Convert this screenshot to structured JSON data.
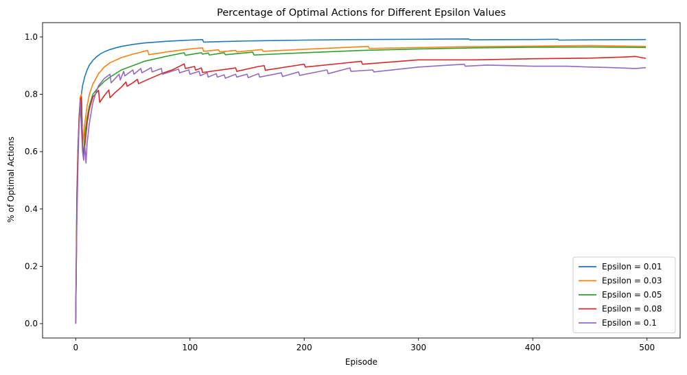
{
  "chart_data": {
    "type": "line",
    "title": "Percentage of Optimal Actions for Different Epsilon Values",
    "xlabel": "Episode",
    "ylabel": "% of Optimal Actions",
    "xlim": [
      -29,
      529
    ],
    "ylim": [
      -0.05,
      1.05
    ],
    "xticks": [
      0,
      100,
      200,
      300,
      400,
      500
    ],
    "yticks": [
      0.0,
      0.2,
      0.4,
      0.6,
      0.8,
      1.0
    ],
    "ytick_labels": [
      "0.0",
      "0.2",
      "0.4",
      "0.6",
      "0.8",
      "1.0"
    ],
    "grid": false,
    "legend_position": "lower-right",
    "series": [
      {
        "name": "Epsilon = 0.01",
        "color": "#1f77b4",
        "x": [
          0,
          1,
          2,
          3,
          4,
          5,
          6,
          8,
          10,
          12,
          15,
          18,
          22,
          26,
          30,
          35,
          40,
          50,
          60,
          70,
          80,
          90,
          100,
          111,
          112,
          130,
          150,
          200,
          250,
          300,
          344,
          345,
          400,
          422,
          423,
          450,
          499
        ],
        "y": [
          0.0,
          0.45,
          0.62,
          0.7,
          0.76,
          0.8,
          0.83,
          0.862,
          0.885,
          0.902,
          0.918,
          0.93,
          0.942,
          0.95,
          0.956,
          0.962,
          0.967,
          0.974,
          0.979,
          0.982,
          0.985,
          0.987,
          0.989,
          0.991,
          0.982,
          0.984,
          0.986,
          0.989,
          0.991,
          0.992,
          0.993,
          0.99,
          0.991,
          0.992,
          0.989,
          0.99,
          0.991
        ]
      },
      {
        "name": "Epsilon = 0.03",
        "color": "#ff7f0e",
        "x": [
          0,
          1,
          2,
          3,
          4,
          5,
          6,
          8,
          10,
          12,
          15,
          20,
          25,
          30,
          40,
          50,
          63,
          64,
          80,
          100,
          111,
          112,
          125,
          126,
          140,
          141,
          163,
          164,
          200,
          256,
          257,
          300,
          340,
          400,
          450,
          499
        ],
        "y": [
          0.0,
          0.4,
          0.6,
          0.72,
          0.79,
          0.8,
          0.62,
          0.7,
          0.76,
          0.8,
          0.835,
          0.872,
          0.895,
          0.91,
          0.928,
          0.94,
          0.953,
          0.938,
          0.948,
          0.958,
          0.962,
          0.95,
          0.955,
          0.948,
          0.953,
          0.948,
          0.956,
          0.95,
          0.957,
          0.967,
          0.96,
          0.963,
          0.966,
          0.968,
          0.97,
          0.967
        ]
      },
      {
        "name": "Epsilon = 0.05",
        "color": "#2ca02c",
        "x": [
          0,
          1,
          2,
          3,
          4,
          5,
          6,
          7,
          8,
          10,
          12,
          15,
          20,
          25,
          30,
          40,
          50,
          60,
          80,
          95,
          96,
          110,
          111,
          116,
          117,
          130,
          131,
          155,
          156,
          200,
          250,
          300,
          350,
          400,
          450,
          499
        ],
        "y": [
          0.0,
          0.4,
          0.6,
          0.72,
          0.78,
          0.79,
          0.63,
          0.58,
          0.66,
          0.72,
          0.76,
          0.8,
          0.825,
          0.845,
          0.86,
          0.885,
          0.9,
          0.915,
          0.933,
          0.945,
          0.936,
          0.945,
          0.94,
          0.944,
          0.937,
          0.945,
          0.938,
          0.947,
          0.937,
          0.945,
          0.953,
          0.958,
          0.962,
          0.964,
          0.965,
          0.963
        ]
      },
      {
        "name": "Epsilon = 0.08",
        "color": "#d62728",
        "x": [
          0,
          1,
          2,
          3,
          4,
          5,
          6,
          7,
          8,
          10,
          12,
          15,
          18,
          20,
          21,
          25,
          29,
          30,
          35,
          40,
          44,
          45,
          50,
          54,
          55,
          65,
          75,
          85,
          95,
          96,
          104,
          105,
          110,
          111,
          140,
          141,
          160,
          165,
          166,
          200,
          201,
          250,
          251,
          300,
          350,
          400,
          450,
          480,
          490,
          499
        ],
        "y": [
          0.0,
          0.4,
          0.6,
          0.72,
          0.78,
          0.79,
          0.62,
          0.58,
          0.62,
          0.7,
          0.75,
          0.79,
          0.805,
          0.814,
          0.772,
          0.795,
          0.815,
          0.788,
          0.808,
          0.825,
          0.843,
          0.828,
          0.84,
          0.852,
          0.837,
          0.855,
          0.872,
          0.886,
          0.906,
          0.89,
          0.897,
          0.884,
          0.892,
          0.876,
          0.892,
          0.88,
          0.897,
          0.9,
          0.884,
          0.905,
          0.895,
          0.915,
          0.905,
          0.92,
          0.92,
          0.924,
          0.926,
          0.93,
          0.932,
          0.925
        ]
      },
      {
        "name": "Epsilon = 0.1",
        "color": "#9467bd",
        "x": [
          0,
          1,
          2,
          3,
          4,
          5,
          6,
          7,
          8,
          9,
          10,
          12,
          15,
          18,
          20,
          25,
          30,
          31,
          38,
          39,
          42,
          43,
          50,
          51,
          57,
          58,
          66,
          67,
          75,
          76,
          90,
          91,
          99,
          100,
          108,
          109,
          115,
          116,
          123,
          124,
          130,
          131,
          140,
          141,
          150,
          151,
          160,
          161,
          180,
          181,
          195,
          196,
          220,
          221,
          240,
          241,
          260,
          261,
          300,
          340,
          341,
          360,
          380,
          400,
          430,
          450,
          470,
          490,
          499
        ],
        "y": [
          0.0,
          0.35,
          0.55,
          0.7,
          0.78,
          0.68,
          0.6,
          0.57,
          0.62,
          0.56,
          0.63,
          0.7,
          0.77,
          0.81,
          0.83,
          0.855,
          0.87,
          0.84,
          0.87,
          0.85,
          0.88,
          0.864,
          0.885,
          0.87,
          0.89,
          0.875,
          0.893,
          0.878,
          0.89,
          0.87,
          0.888,
          0.875,
          0.885,
          0.87,
          0.88,
          0.865,
          0.875,
          0.86,
          0.872,
          0.86,
          0.868,
          0.856,
          0.87,
          0.86,
          0.87,
          0.858,
          0.872,
          0.86,
          0.875,
          0.862,
          0.878,
          0.866,
          0.885,
          0.872,
          0.892,
          0.88,
          0.885,
          0.878,
          0.895,
          0.905,
          0.898,
          0.902,
          0.9,
          0.898,
          0.898,
          0.895,
          0.893,
          0.89,
          0.893
        ]
      }
    ]
  }
}
